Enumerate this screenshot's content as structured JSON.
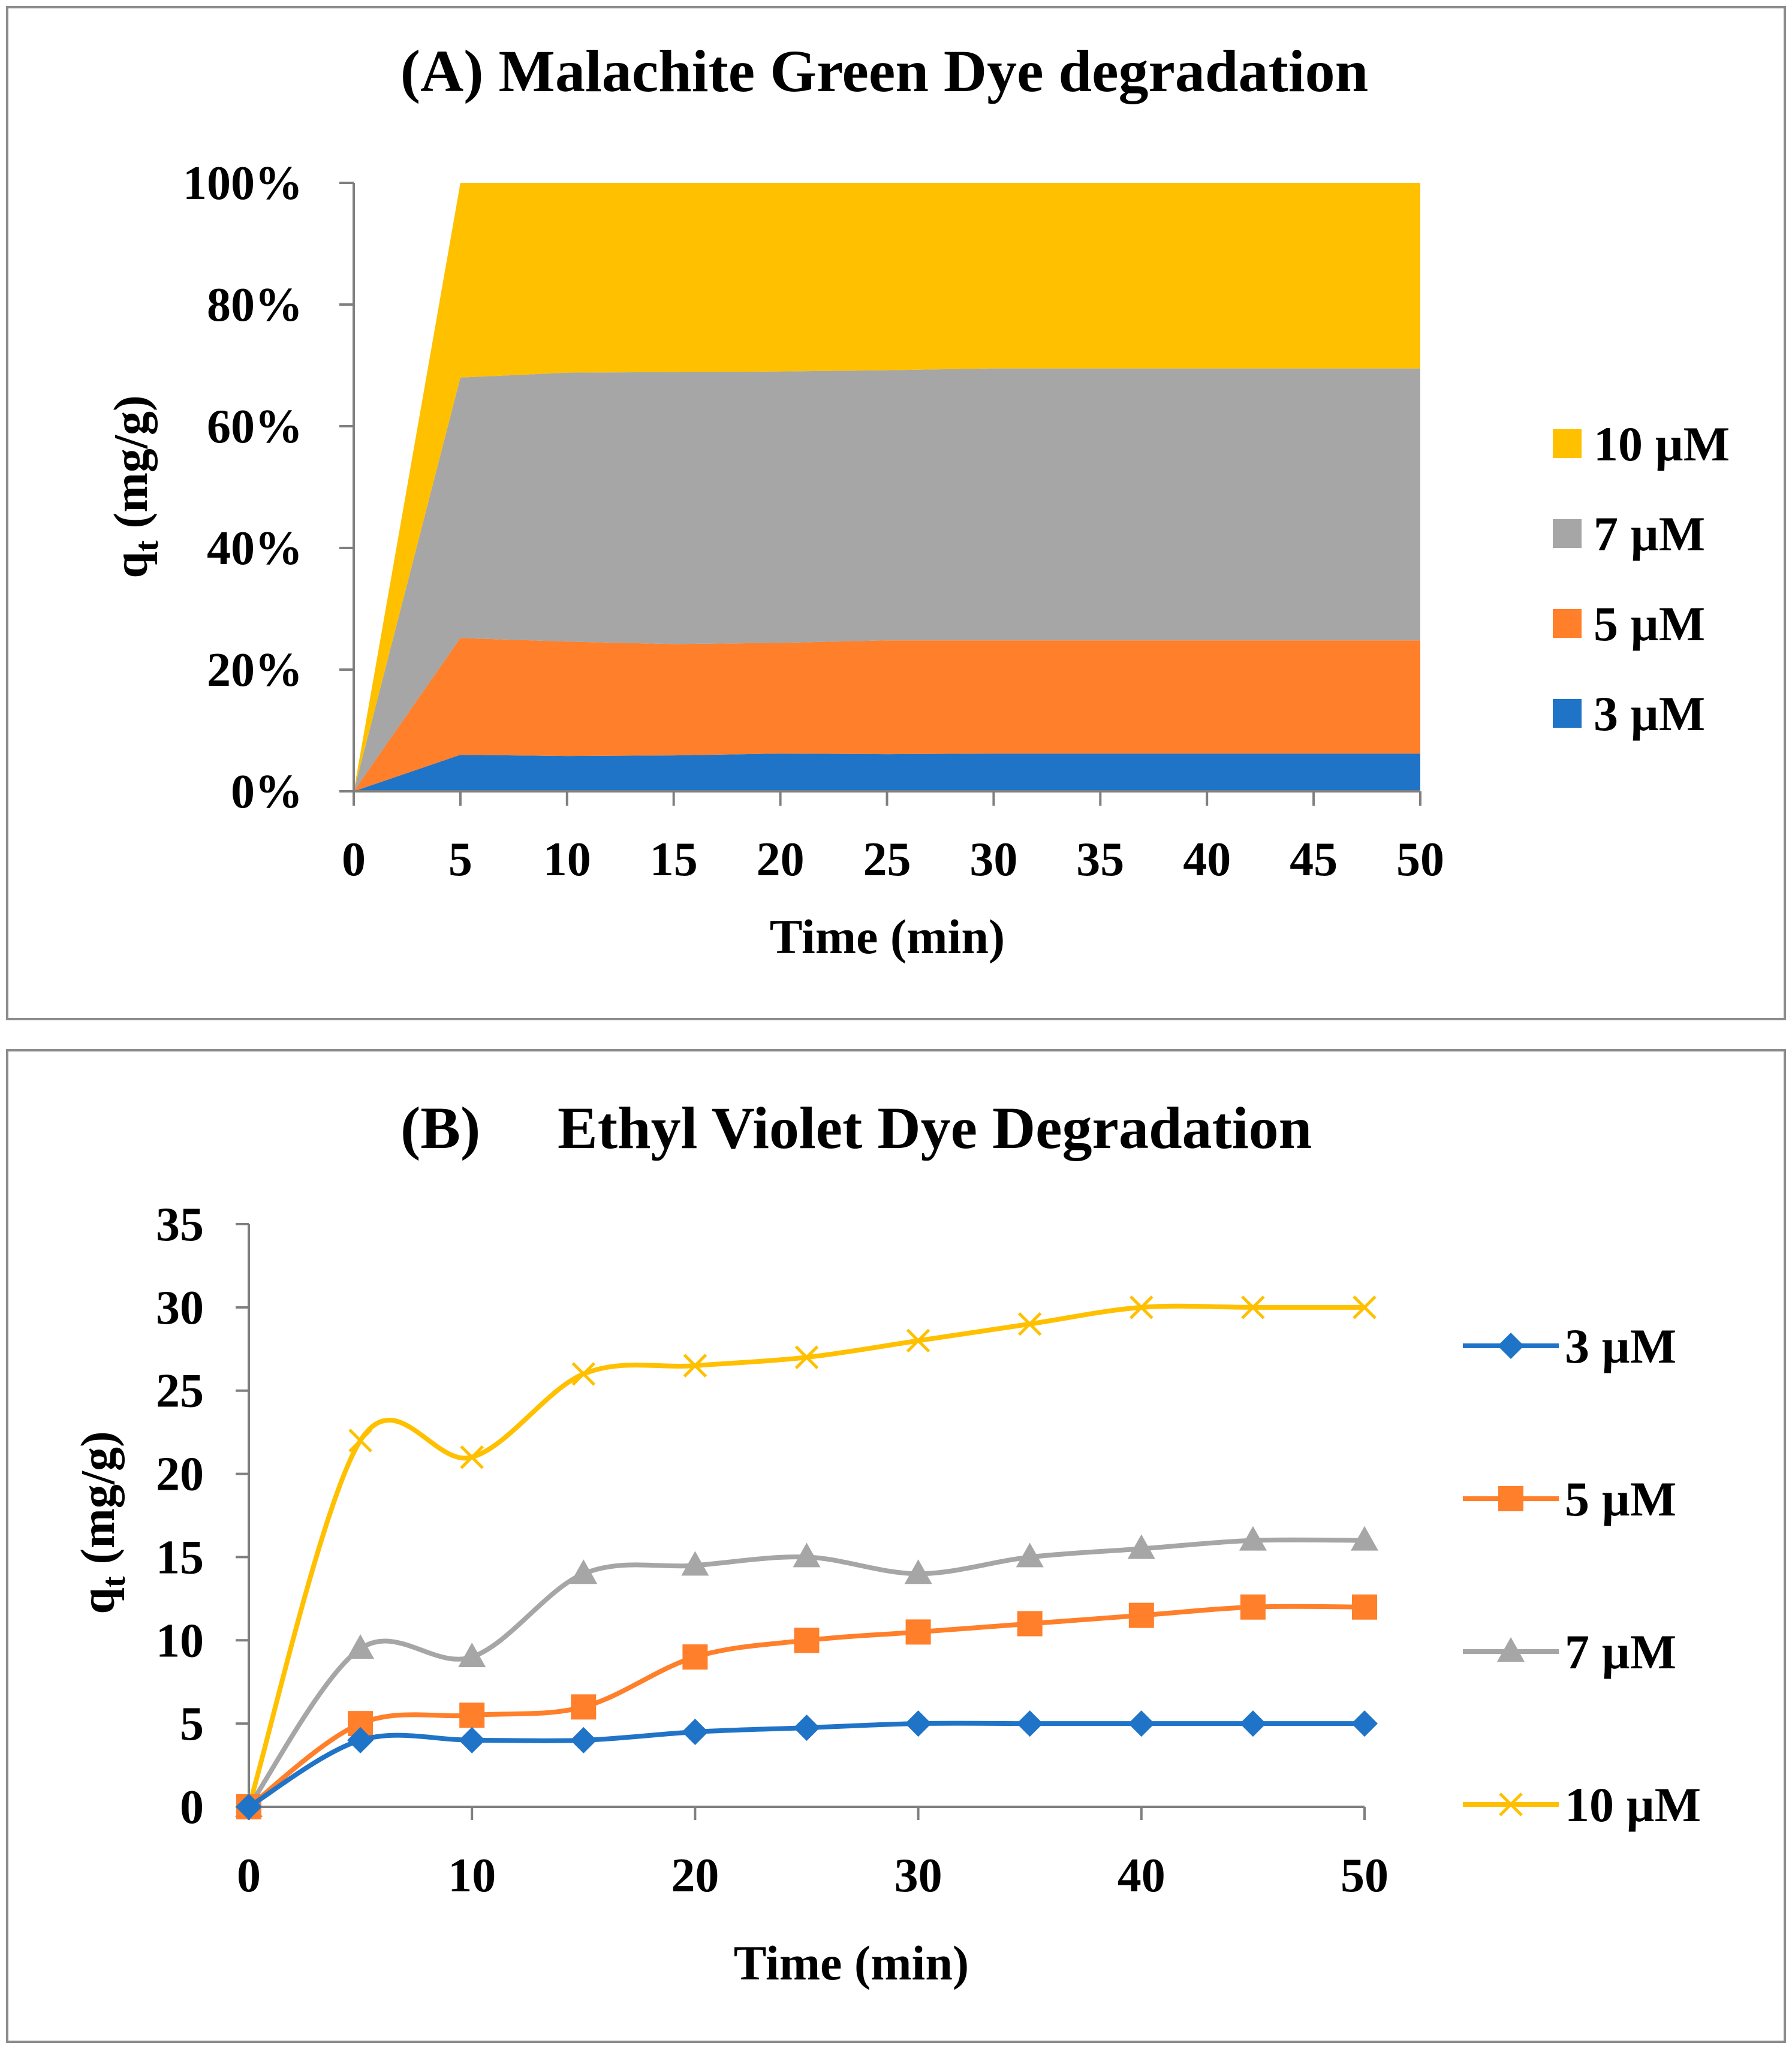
{
  "chart_data": [
    {
      "type": "area",
      "stacked": "percent",
      "title": "(A) Malachite Green Dye degradation",
      "xlabel": "Time (min)",
      "ylabel_main": "q",
      "ylabel_sub": "t",
      "ylabel_rest": " (mg/g)",
      "x": [
        0,
        5,
        10,
        15,
        20,
        25,
        30,
        35,
        40,
        45,
        50
      ],
      "xticks": [
        "0",
        "5",
        "10",
        "15",
        "20",
        "25",
        "30",
        "35",
        "40",
        "45",
        "50"
      ],
      "yticks": [
        "0%",
        "20%",
        "40%",
        "60%",
        "80%",
        "100%"
      ],
      "ylim": [
        0,
        100
      ],
      "grid": false,
      "legend_position": "right",
      "series": [
        {
          "name": "3 µM",
          "color": "#1F74C8",
          "values": [
            0,
            6.0,
            5.8,
            5.9,
            6.2,
            6.1,
            6.2,
            6.2,
            6.2,
            6.2,
            6.2
          ]
        },
        {
          "name": "5 µM",
          "color": "#FF7F2A",
          "values": [
            0,
            19.2,
            18.8,
            18.3,
            18.2,
            18.7,
            18.6,
            18.6,
            18.6,
            18.6,
            18.6
          ]
        },
        {
          "name": "7 µM",
          "color": "#A6A6A6",
          "values": [
            0,
            42.8,
            44.2,
            44.7,
            44.6,
            44.4,
            44.7,
            44.7,
            44.7,
            44.7,
            44.7
          ]
        },
        {
          "name": "10 µM",
          "color": "#FFC000",
          "values": [
            0,
            32.0,
            31.2,
            31.1,
            31.0,
            30.8,
            30.5,
            30.5,
            30.5,
            30.5,
            30.5
          ]
        }
      ],
      "legend_order": [
        3,
        2,
        1,
        0
      ]
    },
    {
      "type": "line",
      "smooth": true,
      "title_label": "(B)",
      "title_text": "Ethyl Violet Dye Degradation",
      "xlabel": "Time (min)",
      "ylabel_main": "q",
      "ylabel_sub": "t",
      "ylabel_rest": " (mg/g)",
      "x": [
        0,
        5,
        10,
        15,
        20,
        25,
        30,
        35,
        40,
        45,
        50
      ],
      "xticks": [
        "0",
        "10",
        "20",
        "30",
        "40",
        "50"
      ],
      "xtick_values": [
        0,
        10,
        20,
        30,
        40,
        50
      ],
      "yticks": [
        "0",
        "5",
        "10",
        "15",
        "20",
        "25",
        "30",
        "35"
      ],
      "ylim": [
        0,
        35
      ],
      "xlim": [
        0,
        50
      ],
      "grid": false,
      "legend_position": "right",
      "series": [
        {
          "name": "3 µM",
          "color": "#1F74C8",
          "marker": "diamond",
          "values": [
            0,
            4,
            4,
            4,
            4.5,
            4.75,
            5,
            5,
            5,
            5,
            5
          ]
        },
        {
          "name": "5 µM",
          "color": "#FF7F2A",
          "marker": "square",
          "values": [
            0,
            5,
            5.5,
            6,
            9,
            10,
            10.5,
            11,
            11.5,
            12,
            12
          ]
        },
        {
          "name": "7 µM",
          "color": "#A6A6A6",
          "marker": "triangle",
          "values": [
            0,
            9.5,
            9,
            14,
            14.5,
            15,
            14,
            15,
            15.5,
            16,
            16
          ]
        },
        {
          "name": "10 µM",
          "color": "#FFC000",
          "marker": "x",
          "values": [
            0,
            22,
            21,
            26,
            26.5,
            27,
            28,
            29,
            30,
            30,
            30
          ]
        }
      ]
    }
  ]
}
